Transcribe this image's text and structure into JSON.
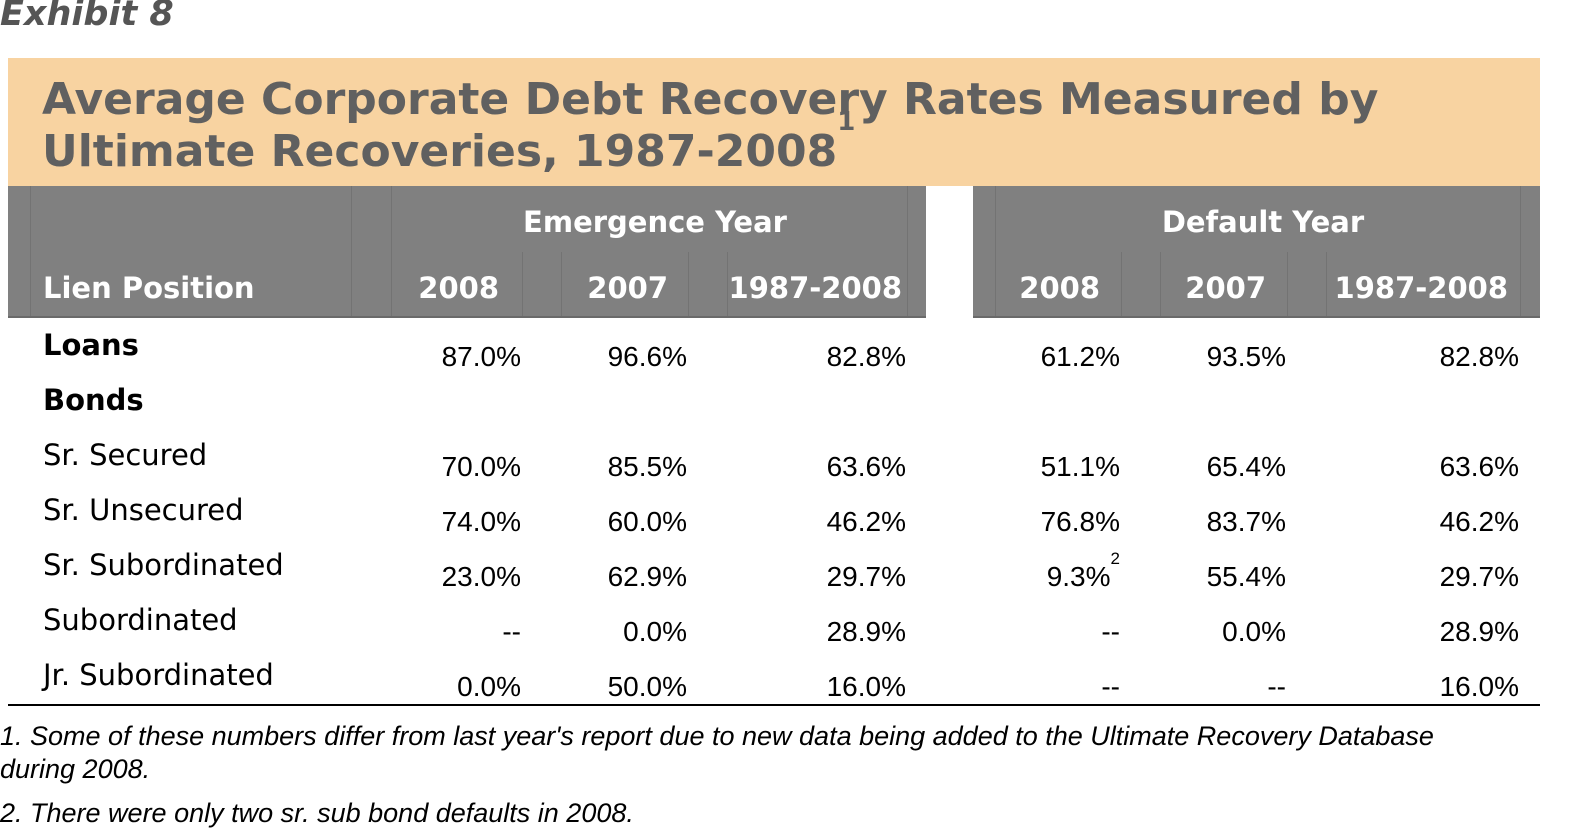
{
  "exhibit": "Exhibit 8",
  "title": "Average Corporate Debt Recovery Rates Measured by Ultimate Recoveries, 1987-2008",
  "title_line1": "Average Corporate Debt Recovery Rates Measured by",
  "title_line2": "Ultimate Recoveries, 1987-2008",
  "title_footnote_mark": "1",
  "group_headers": {
    "emergence": "Emergence Year",
    "default": "Default Year"
  },
  "column_headers": {
    "lien": "Lien Position",
    "em_2008": "2008",
    "em_2007": "2007",
    "em_all": "1987-2008",
    "df_2008": "2008",
    "df_2007": "2007",
    "df_all": "1987-2008"
  },
  "rows": [
    {
      "label": "Loans",
      "bold": true,
      "em_2008": "87.0%",
      "em_2007": "96.6%",
      "em_all": "82.8%",
      "df_2008": "61.2%",
      "df_2007": "93.5%",
      "df_all": "82.8%"
    },
    {
      "label": "Bonds",
      "bold": true,
      "em_2008": "",
      "em_2007": "",
      "em_all": "",
      "df_2008": "",
      "df_2007": "",
      "df_all": ""
    },
    {
      "label": "Sr. Secured",
      "bold": false,
      "em_2008": "70.0%",
      "em_2007": "85.5%",
      "em_all": "63.6%",
      "df_2008": "51.1%",
      "df_2007": "65.4%",
      "df_all": "63.6%"
    },
    {
      "label": "Sr. Unsecured",
      "bold": false,
      "em_2008": "74.0%",
      "em_2007": "60.0%",
      "em_all": "46.2%",
      "df_2008": "76.8%",
      "df_2007": "83.7%",
      "df_all": "46.2%"
    },
    {
      "label": "Sr. Subordinated",
      "bold": false,
      "em_2008": "23.0%",
      "em_2007": "62.9%",
      "em_all": "29.7%",
      "df_2008": "9.3%",
      "df_2008_note": "2",
      "df_2007": "55.4%",
      "df_all": "29.7%"
    },
    {
      "label": "Subordinated",
      "bold": false,
      "em_2008": "--",
      "em_2007": "0.0%",
      "em_all": "28.9%",
      "df_2008": "--",
      "df_2007": "0.0%",
      "df_all": "28.9%"
    },
    {
      "label": "Jr. Subordinated",
      "bold": false,
      "em_2008": "0.0%",
      "em_2007": "50.0%",
      "em_all": "16.0%",
      "df_2008": "--",
      "df_2007": "--",
      "df_all": "16.0%"
    }
  ],
  "footnotes": {
    "note1_line1": "1. Some of these numbers differ from last year's report due to new data being added to the Ultimate Recovery Database",
    "note1_line2": "during 2008.",
    "note2": "2. There were only two sr. sub bond defaults in 2008."
  },
  "colors": {
    "title_band": "#f8d3a1",
    "title_text": "#606060",
    "header_band": "#808080",
    "header_text": "#ffffff"
  },
  "chart_data": {
    "type": "table",
    "title": "Average Corporate Debt Recovery Rates Measured by Ultimate Recoveries, 1987-2008",
    "columns": [
      "Lien Position",
      "Emergence Year 2008",
      "Emergence Year 2007",
      "Emergence Year 1987-2008",
      "Default Year 2008",
      "Default Year 2007",
      "Default Year 1987-2008"
    ],
    "rows": [
      [
        "Loans",
        87.0,
        96.6,
        82.8,
        61.2,
        93.5,
        82.8
      ],
      [
        "Sr. Secured",
        70.0,
        85.5,
        63.6,
        51.1,
        65.4,
        63.6
      ],
      [
        "Sr. Unsecured",
        74.0,
        60.0,
        46.2,
        76.8,
        83.7,
        46.2
      ],
      [
        "Sr. Subordinated",
        23.0,
        62.9,
        29.7,
        9.3,
        55.4,
        29.7
      ],
      [
        "Subordinated",
        null,
        0.0,
        28.9,
        null,
        0.0,
        28.9
      ],
      [
        "Jr. Subordinated",
        0.0,
        50.0,
        16.0,
        null,
        null,
        16.0
      ]
    ],
    "unit": "%"
  }
}
